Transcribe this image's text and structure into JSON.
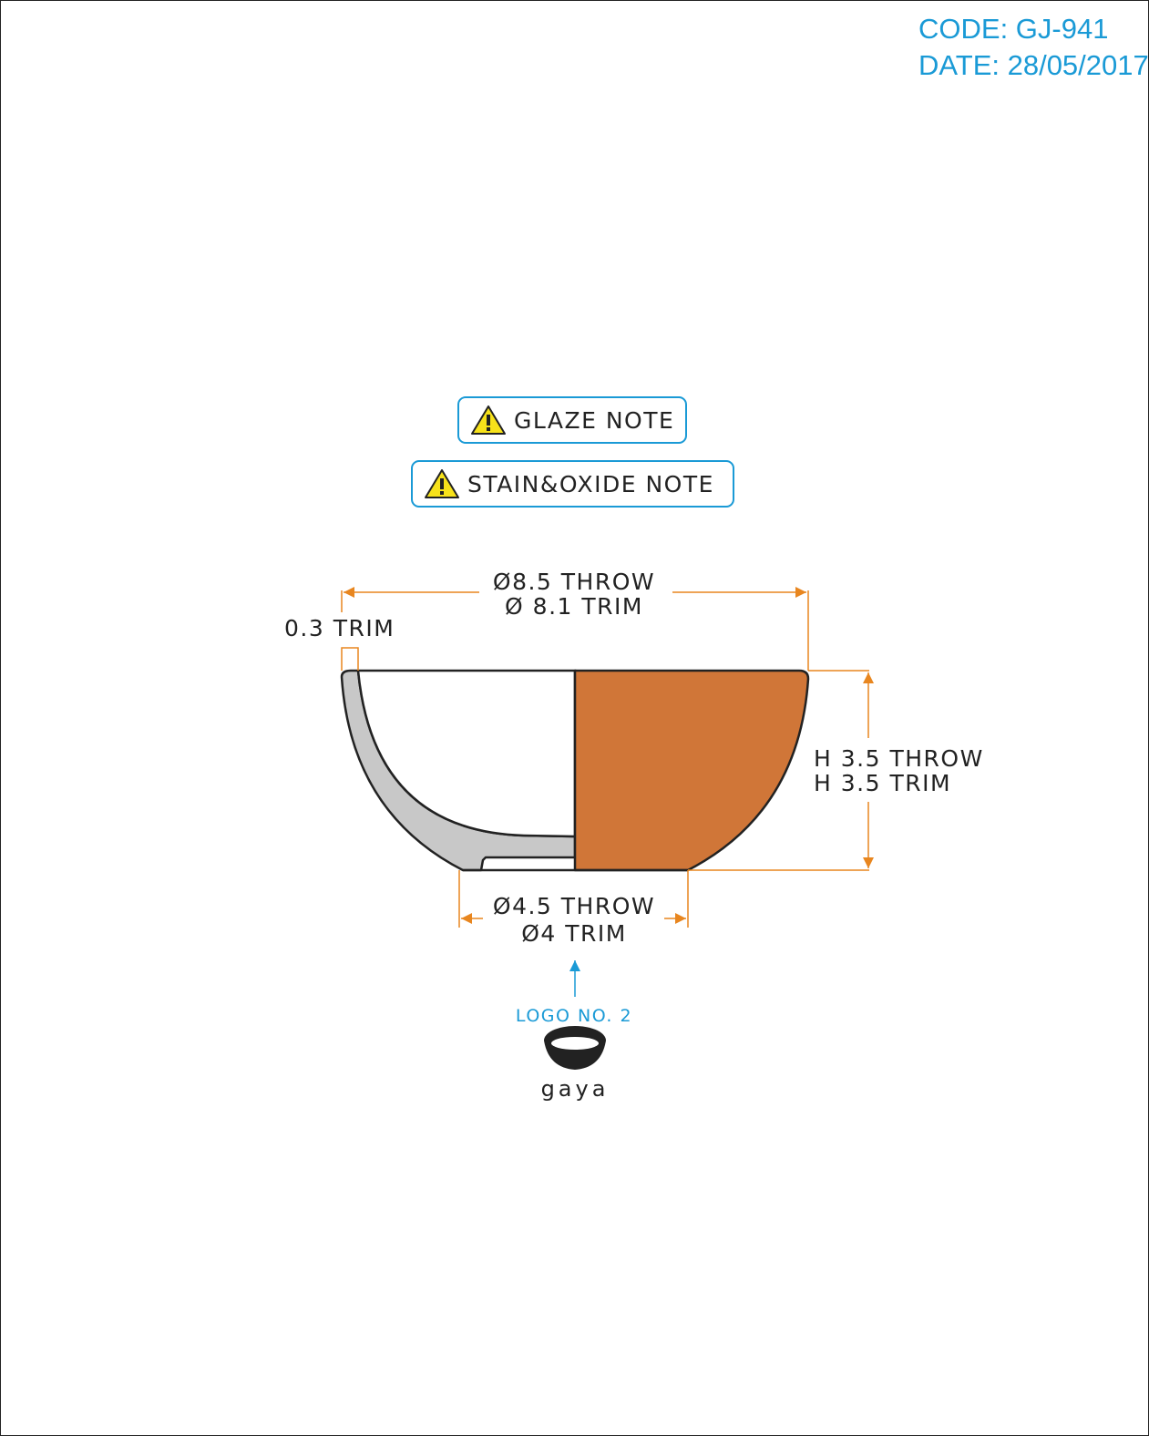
{
  "header": {
    "code": "CODE: GJ-941",
    "date": "DATE: 28/05/2017"
  },
  "notes": {
    "glaze": "GLAZE NOTE",
    "stain": "STAIN&OXIDE NOTE",
    "icon": "warning-triangle-icon"
  },
  "dimensions": {
    "rim_throw": "8.5 THROW",
    "rim_trim": "8.1 TRIM",
    "wall_trim": "0.3 TRIM",
    "height_throw": "H 3.5 THROW",
    "height_trim": "H 3.5 TRIM",
    "foot_throw": "4.5 THROW",
    "foot_trim": "4 TRIM",
    "diameter_symbol": "Ø"
  },
  "logo": {
    "label": "LOGO NO. 2",
    "brand": "gaya"
  },
  "colors": {
    "accent_blue": "#1a9ad6",
    "dimension_orange": "#e8861f",
    "glaze_fill": "#d07638",
    "clay_section": "#c8c8c8",
    "outline": "#222222"
  }
}
